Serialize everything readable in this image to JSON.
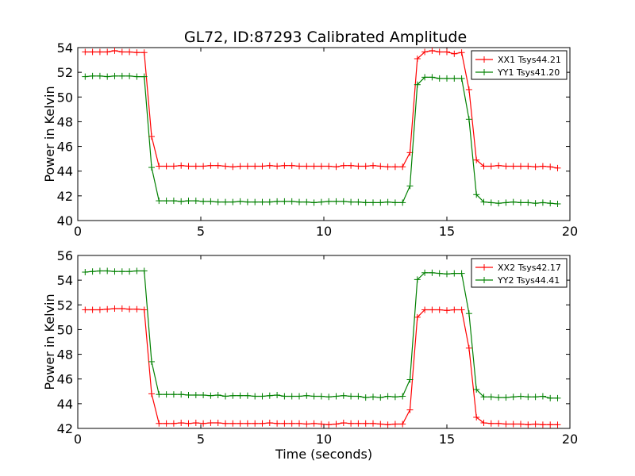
{
  "chart_data": [
    {
      "type": "line",
      "title": "GL72, ID:87293 Calibrated Amplitude",
      "xlabel": "",
      "ylabel": "Power in Kelvin",
      "xlim": [
        0,
        20
      ],
      "ylim": [
        40,
        54
      ],
      "xticks": [
        "0",
        "5",
        "10",
        "15",
        "20"
      ],
      "yticks": [
        "40",
        "42",
        "44",
        "46",
        "48",
        "50",
        "52",
        "54"
      ],
      "legend_position": "top-right",
      "grid": false,
      "x": [
        0.3,
        0.6,
        0.9,
        1.2,
        1.5,
        1.8,
        2.1,
        2.4,
        2.7,
        3.0,
        3.3,
        3.6,
        3.9,
        4.2,
        4.5,
        4.8,
        5.1,
        5.4,
        5.7,
        6.0,
        6.3,
        6.6,
        6.9,
        7.2,
        7.5,
        7.8,
        8.1,
        8.4,
        8.7,
        9.0,
        9.3,
        9.6,
        9.9,
        10.2,
        10.5,
        10.8,
        11.1,
        11.4,
        11.7,
        12.0,
        12.3,
        12.6,
        12.9,
        13.2,
        13.5,
        13.8,
        14.1,
        14.4,
        14.7,
        15.0,
        15.3,
        15.6,
        15.9,
        16.2,
        16.5,
        16.8,
        17.1,
        17.4,
        17.7,
        18.0,
        18.3,
        18.6,
        18.9,
        19.2,
        19.5
      ],
      "series": [
        {
          "name": "XX1 Tsys44.21",
          "color": "#ff0000",
          "values": [
            53.65,
            53.65,
            53.65,
            53.65,
            53.75,
            53.65,
            53.65,
            53.6,
            53.6,
            46.8,
            44.4,
            44.4,
            44.4,
            44.45,
            44.4,
            44.4,
            44.4,
            44.45,
            44.45,
            44.4,
            44.35,
            44.4,
            44.4,
            44.4,
            44.4,
            44.45,
            44.4,
            44.45,
            44.45,
            44.4,
            44.4,
            44.4,
            44.4,
            44.4,
            44.35,
            44.45,
            44.45,
            44.4,
            44.4,
            44.45,
            44.4,
            44.35,
            44.35,
            44.35,
            45.5,
            53.1,
            53.65,
            53.75,
            53.65,
            53.65,
            53.5,
            53.6,
            50.6,
            44.9,
            44.4,
            44.4,
            44.45,
            44.4,
            44.4,
            44.4,
            44.4,
            44.35,
            44.4,
            44.35,
            44.25
          ]
        },
        {
          "name": "YY1 Tsys41.20",
          "color": "#008000",
          "values": [
            51.65,
            51.7,
            51.7,
            51.65,
            51.7,
            51.7,
            51.7,
            51.65,
            51.65,
            44.3,
            41.6,
            41.6,
            41.6,
            41.55,
            41.6,
            41.6,
            41.55,
            41.55,
            41.5,
            41.5,
            41.5,
            41.55,
            41.5,
            41.5,
            41.5,
            41.5,
            41.55,
            41.55,
            41.55,
            41.5,
            41.5,
            41.45,
            41.5,
            41.55,
            41.55,
            41.55,
            41.5,
            41.5,
            41.45,
            41.45,
            41.45,
            41.5,
            41.45,
            41.45,
            42.8,
            51.0,
            51.6,
            51.6,
            51.5,
            51.5,
            51.5,
            51.5,
            48.2,
            42.1,
            41.5,
            41.45,
            41.4,
            41.45,
            41.5,
            41.45,
            41.45,
            41.4,
            41.45,
            41.4,
            41.35
          ]
        }
      ]
    },
    {
      "type": "line",
      "title": "",
      "xlabel": "Time (seconds)",
      "ylabel": "Power in Kelvin",
      "xlim": [
        0,
        20
      ],
      "ylim": [
        42,
        56
      ],
      "xticks": [
        "0",
        "5",
        "10",
        "15",
        "20"
      ],
      "yticks": [
        "42",
        "44",
        "46",
        "48",
        "50",
        "52",
        "54",
        "56"
      ],
      "legend_position": "top-right",
      "grid": false,
      "x": [
        0.3,
        0.6,
        0.9,
        1.2,
        1.5,
        1.8,
        2.1,
        2.4,
        2.7,
        3.0,
        3.3,
        3.6,
        3.9,
        4.2,
        4.5,
        4.8,
        5.1,
        5.4,
        5.7,
        6.0,
        6.3,
        6.6,
        6.9,
        7.2,
        7.5,
        7.8,
        8.1,
        8.4,
        8.7,
        9.0,
        9.3,
        9.6,
        9.9,
        10.2,
        10.5,
        10.8,
        11.1,
        11.4,
        11.7,
        12.0,
        12.3,
        12.6,
        12.9,
        13.2,
        13.5,
        13.8,
        14.1,
        14.4,
        14.7,
        15.0,
        15.3,
        15.6,
        15.9,
        16.2,
        16.5,
        16.8,
        17.1,
        17.4,
        17.7,
        18.0,
        18.3,
        18.6,
        18.9,
        19.2,
        19.5
      ],
      "series": [
        {
          "name": "XX2 Tsys42.17",
          "color": "#ff0000",
          "values": [
            51.6,
            51.6,
            51.6,
            51.65,
            51.7,
            51.7,
            51.65,
            51.65,
            51.6,
            44.8,
            42.4,
            42.4,
            42.4,
            42.45,
            42.4,
            42.45,
            42.4,
            42.45,
            42.45,
            42.4,
            42.4,
            42.4,
            42.4,
            42.4,
            42.4,
            42.45,
            42.4,
            42.4,
            42.4,
            42.4,
            42.35,
            42.4,
            42.35,
            42.3,
            42.35,
            42.45,
            42.4,
            42.4,
            42.4,
            42.4,
            42.35,
            42.3,
            42.35,
            42.35,
            43.5,
            51.0,
            51.6,
            51.6,
            51.6,
            51.55,
            51.6,
            51.6,
            48.5,
            42.9,
            42.45,
            42.4,
            42.4,
            42.35,
            42.35,
            42.35,
            42.3,
            42.35,
            42.3,
            42.3,
            42.3
          ]
        },
        {
          "name": "YY2 Tsys44.41",
          "color": "#008000",
          "values": [
            54.65,
            54.7,
            54.75,
            54.75,
            54.7,
            54.7,
            54.7,
            54.75,
            54.75,
            47.4,
            44.75,
            44.75,
            44.75,
            44.75,
            44.7,
            44.7,
            44.7,
            44.65,
            44.7,
            44.6,
            44.65,
            44.65,
            44.65,
            44.6,
            44.6,
            44.65,
            44.7,
            44.6,
            44.6,
            44.6,
            44.65,
            44.6,
            44.6,
            44.55,
            44.6,
            44.65,
            44.6,
            44.6,
            44.5,
            44.55,
            44.5,
            44.6,
            44.55,
            44.6,
            45.95,
            54.05,
            54.6,
            54.6,
            54.55,
            54.5,
            54.55,
            54.55,
            51.3,
            45.15,
            44.55,
            44.55,
            44.5,
            44.5,
            44.55,
            44.6,
            44.55,
            44.55,
            44.6,
            44.45,
            44.45
          ]
        }
      ]
    }
  ]
}
